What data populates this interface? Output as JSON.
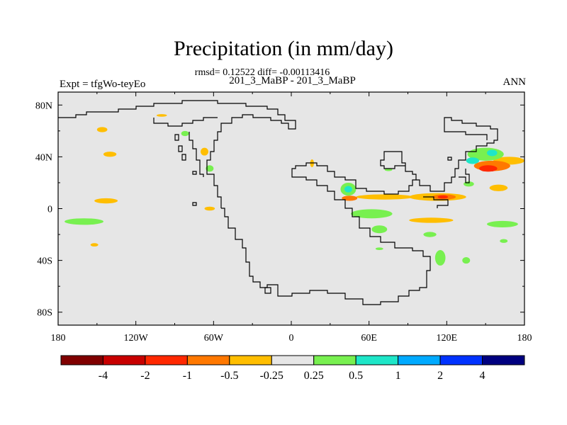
{
  "chart_data": {
    "type": "heatmap",
    "title": "Precipitation (in mm/day)",
    "stats_line": "rmsd= 0.12522 diff= -0.00113416",
    "subtitle": "201_3_MaBP - 201_3_MaBP",
    "left_label": "Expt = tfgWo-teyEo",
    "right_label": "ANN",
    "x_ticks": [
      {
        "value": -180,
        "label": "180"
      },
      {
        "value": -120,
        "label": "120W"
      },
      {
        "value": -60,
        "label": "60W"
      },
      {
        "value": 0,
        "label": "0"
      },
      {
        "value": 60,
        "label": "60E"
      },
      {
        "value": 120,
        "label": "120E"
      },
      {
        "value": 180,
        "label": "180"
      }
    ],
    "y_ticks": [
      {
        "value": 80,
        "label": "80N"
      },
      {
        "value": 40,
        "label": "40N"
      },
      {
        "value": 0,
        "label": "0"
      },
      {
        "value": -40,
        "label": "40S"
      },
      {
        "value": -80,
        "label": "80S"
      }
    ],
    "xlim": [
      -180,
      180
    ],
    "ylim": [
      -90,
      90
    ],
    "colorbar": {
      "colors": [
        "#800000",
        "#c80000",
        "#ff2800",
        "#ff7800",
        "#ffbe00",
        "#e6e6e6",
        "#78f050",
        "#1ee6c8",
        "#00aaff",
        "#0032ff",
        "#000080"
      ],
      "labels": [
        "-4",
        "-2",
        "-1",
        "-0.5",
        "-0.25",
        "0.25",
        "0.5",
        "1",
        "2",
        "4"
      ]
    },
    "anomalies": [
      {
        "lon": 168,
        "lat": 37,
        "rlon": 12,
        "rlat": 3,
        "color": "#ffbe00"
      },
      {
        "lon": 155,
        "lat": 33,
        "rlon": 14,
        "rlat": 4,
        "color": "#ff7800"
      },
      {
        "lon": 152,
        "lat": 31,
        "rlon": 7,
        "rlat": 2.5,
        "color": "#ff2800"
      },
      {
        "lon": 150,
        "lat": 42,
        "rlon": 14,
        "rlat": 5,
        "color": "#78f050"
      },
      {
        "lon": 155,
        "lat": 43,
        "rlon": 4,
        "rlat": 2.5,
        "color": "#1ee6c8"
      },
      {
        "lon": 140,
        "lat": 37,
        "rlon": 5,
        "rlat": 2.5,
        "color": "#1ee6c8"
      },
      {
        "lon": 113,
        "lat": 9,
        "rlon": 22,
        "rlat": 3,
        "color": "#ffbe00"
      },
      {
        "lon": 118,
        "lat": 9,
        "rlon": 9,
        "rlat": 2,
        "color": "#ff7800"
      },
      {
        "lon": 117,
        "lat": 9,
        "rlon": 4,
        "rlat": 1.2,
        "color": "#ff2800"
      },
      {
        "lon": 72,
        "lat": 9,
        "rlon": 22,
        "rlat": 2,
        "color": "#ffbe00"
      },
      {
        "lon": 45,
        "lat": 8,
        "rlon": 6,
        "rlat": 2,
        "color": "#ff7800"
      },
      {
        "lon": 44,
        "lat": 15,
        "rlon": 6,
        "rlat": 5,
        "color": "#78f050"
      },
      {
        "lon": 44,
        "lat": 15,
        "rlon": 3,
        "rlat": 2.5,
        "color": "#1ee6c8"
      },
      {
        "lon": 62,
        "lat": -4,
        "rlon": 16,
        "rlat": 3.5,
        "color": "#78f050"
      },
      {
        "lon": 68,
        "lat": -16,
        "rlon": 6,
        "rlat": 3,
        "color": "#78f050"
      },
      {
        "lon": 108,
        "lat": -9,
        "rlon": 17,
        "rlat": 2,
        "color": "#ffbe00"
      },
      {
        "lon": 163,
        "lat": -12,
        "rlon": 12,
        "rlat": 2.5,
        "color": "#78f050"
      },
      {
        "lon": 115,
        "lat": -38,
        "rlon": 4,
        "rlat": 6,
        "color": "#78f050"
      },
      {
        "lon": 107,
        "lat": -20,
        "rlon": 5,
        "rlat": 2,
        "color": "#78f050"
      },
      {
        "lon": 160,
        "lat": 16,
        "rlon": 7,
        "rlat": 2.5,
        "color": "#ffbe00"
      },
      {
        "lon": 137,
        "lat": 19,
        "rlon": 4,
        "rlat": 2,
        "color": "#78f050"
      },
      {
        "lon": 16,
        "lat": 35,
        "rlon": 1.5,
        "rlat": 3,
        "color": "#ffbe00"
      },
      {
        "lon": -160,
        "lat": -10,
        "rlon": 15,
        "rlat": 2.5,
        "color": "#78f050"
      },
      {
        "lon": -143,
        "lat": 6,
        "rlon": 9,
        "rlat": 2,
        "color": "#ffbe00"
      },
      {
        "lon": -146,
        "lat": 61,
        "rlon": 4,
        "rlat": 2,
        "color": "#ffbe00"
      },
      {
        "lon": -140,
        "lat": 42,
        "rlon": 5,
        "rlat": 2,
        "color": "#ffbe00"
      },
      {
        "lon": -152,
        "lat": -28,
        "rlon": 3,
        "rlat": 1.3,
        "color": "#ffbe00"
      },
      {
        "lon": -67,
        "lat": 44,
        "rlon": 3,
        "rlat": 3,
        "color": "#ffbe00"
      },
      {
        "lon": -63,
        "lat": 31,
        "rlon": 3,
        "rlat": 2.5,
        "color": "#78f050"
      },
      {
        "lon": -82,
        "lat": 58,
        "rlon": 3,
        "rlat": 2,
        "color": "#78f050"
      },
      {
        "lon": -63,
        "lat": 0,
        "rlon": 4,
        "rlat": 1.5,
        "color": "#ffbe00"
      },
      {
        "lon": -100,
        "lat": 72,
        "rlon": 4,
        "rlat": 1,
        "color": "#ffbe00"
      },
      {
        "lon": 75,
        "lat": 30,
        "rlon": 3,
        "rlat": 1,
        "color": "#78f050"
      },
      {
        "lon": 68,
        "lat": -31,
        "rlon": 3,
        "rlat": 1,
        "color": "#78f050"
      },
      {
        "lon": 135,
        "lat": -40,
        "rlon": 3,
        "rlat": 2.5,
        "color": "#78f050"
      },
      {
        "lon": 164,
        "lat": -25,
        "rlon": 3,
        "rlat": 1.5,
        "color": "#78f050"
      }
    ]
  }
}
